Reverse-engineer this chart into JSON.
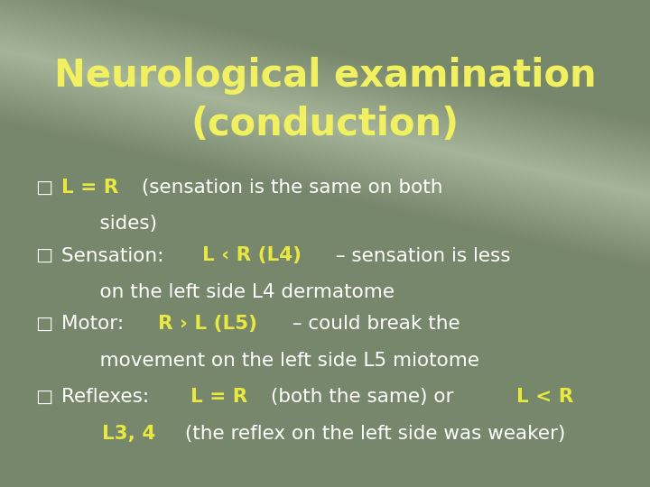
{
  "title_line1": "Neurological examination",
  "title_line2": "(conduction)",
  "title_color": "#f0f060",
  "bullet_color_yellow": "#e8e840",
  "bullet_color_white": "#ffffff",
  "bg_color": "#7a8870",
  "bullet_symbol": "□",
  "bullets": [
    {
      "segments": [
        {
          "text": "L = R",
          "color": "#e8e840",
          "bold": true
        },
        {
          "text": " (sensation is the same on both",
          "color": "#ffffff",
          "bold": false
        }
      ],
      "line2": "    sides)"
    },
    {
      "segments": [
        {
          "text": "Sensation: ",
          "color": "#ffffff",
          "bold": false
        },
        {
          "text": "L ‹ R (L4)",
          "color": "#e8e840",
          "bold": true
        },
        {
          "text": " – sensation is less",
          "color": "#ffffff",
          "bold": false
        }
      ],
      "line2": "    on the left side L4 dermatome"
    },
    {
      "segments": [
        {
          "text": "Motor:  ",
          "color": "#ffffff",
          "bold": false
        },
        {
          "text": "R › L (L5)",
          "color": "#e8e840",
          "bold": true
        },
        {
          "text": " – could break the",
          "color": "#ffffff",
          "bold": false
        }
      ],
      "line2": "    movement on the left side L5 miotome"
    },
    {
      "segments": [
        {
          "text": "Reflexes:  ",
          "color": "#ffffff",
          "bold": false
        },
        {
          "text": "L = R",
          "color": "#e8e840",
          "bold": true
        },
        {
          "text": " (both the same) or ",
          "color": "#ffffff",
          "bold": false
        },
        {
          "text": "L < R",
          "color": "#e8e840",
          "bold": true
        }
      ],
      "line2_segments": [
        {
          "text": "    L3, 4",
          "color": "#e8e840",
          "bold": true
        },
        {
          "text": " (the reflex on the left side was weaker)",
          "color": "#ffffff",
          "bold": false
        }
      ]
    }
  ],
  "title_fontsize": 30,
  "bullet_fontsize": 15.5,
  "figsize": [
    7.2,
    5.4
  ],
  "dpi": 100
}
